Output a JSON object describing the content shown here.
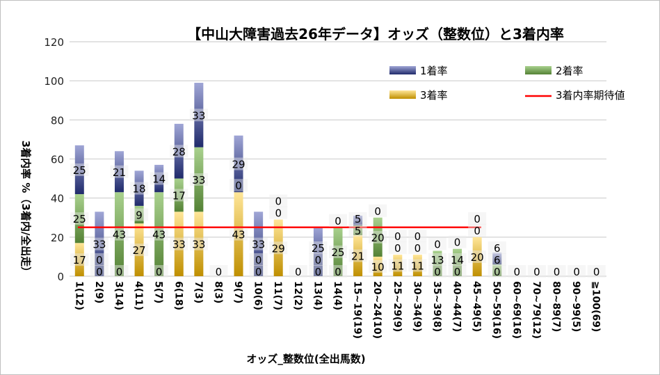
{
  "chart_data": {
    "type": "bar",
    "stacked": true,
    "title": "【中山大障害過去26年データ】オッズ（整数位）と3着内率",
    "xlabel": "オッズ_整数位(全出馬数)",
    "ylabel": "3着内率 %（3着内/全出走）",
    "ylim": [
      0,
      120
    ],
    "yticks": [
      0,
      20,
      40,
      60,
      80,
      100,
      120
    ],
    "grid": true,
    "legend_position": "top-right",
    "categories": [
      "1(12)",
      "2(9)",
      "3(14)",
      "4(11)",
      "5(7)",
      "6(18)",
      "7(3)",
      "8(3)",
      "9(7)",
      "10(6)",
      "11(7)",
      "12(2)",
      "13(4)",
      "14(4)",
      "15~19(19)",
      "20~24(10)",
      "25~29(9)",
      "30~34(9)",
      "35~39(8)",
      "40~44(7)",
      "45~49(5)",
      "50~59(16)",
      "60~69(16)",
      "70~79(12)",
      "80~89(7)",
      "90~99(5)",
      "≧100(69)"
    ],
    "series": [
      {
        "name": "3着率",
        "color": "#bf8f00",
        "color_light": "#ffe699",
        "values": [
          17,
          0,
          0,
          27,
          0,
          33,
          33,
          0,
          43,
          0,
          29,
          0,
          0,
          0,
          21,
          10,
          11,
          11,
          0,
          0,
          20,
          0,
          0,
          0,
          0,
          0,
          0
        ]
      },
      {
        "name": "2着率",
        "color": "#548235",
        "color_light": "#a9d18e",
        "values": [
          25,
          0,
          43,
          9,
          43,
          17,
          33,
          0,
          0,
          0,
          0,
          0,
          0,
          25,
          5,
          20,
          0,
          0,
          13,
          14,
          0,
          6,
          0,
          0,
          0,
          0,
          0
        ]
      },
      {
        "name": "1着率",
        "color": "#1f2a6b",
        "color_light": "#a0a6d6",
        "values": [
          25,
          33,
          21,
          18,
          14,
          28,
          33,
          0,
          29,
          33,
          0,
          0,
          25,
          0,
          5,
          0,
          0,
          0,
          0,
          0,
          0,
          6,
          0,
          0,
          0,
          0,
          0
        ]
      }
    ],
    "reference_line": {
      "name": "3着内率期待値",
      "value": 25,
      "color": "#ff0000"
    },
    "legend": [
      "1着率",
      "2着率",
      "3着率",
      "3着内率期待値"
    ]
  }
}
